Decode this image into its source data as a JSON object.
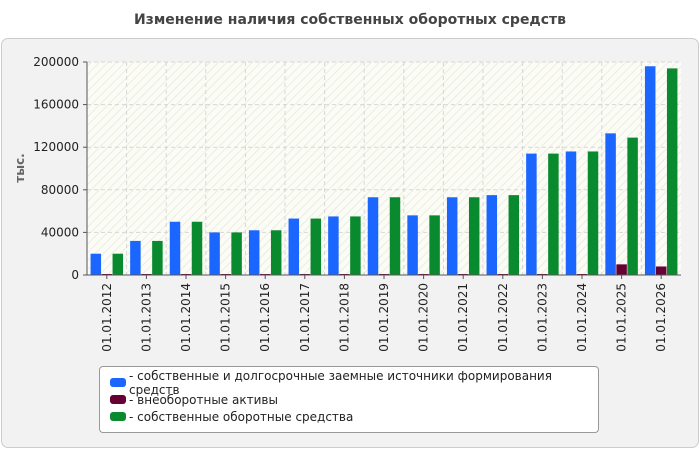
{
  "chart_data": {
    "type": "bar",
    "title": "Изменение наличия собственных оборотных средств",
    "ylabel": "тыс.",
    "xlabel": "",
    "categories": [
      "01.01.2012",
      "01.01.2013",
      "01.01.2014",
      "01.01.2015",
      "01.01.2016",
      "01.01.2017",
      "01.01.2018",
      "01.01.2019",
      "01.01.2020",
      "01.01.2021",
      "01.01.2022",
      "01.01.2023",
      "01.01.2024",
      "01.01.2025",
      "01.01.2026"
    ],
    "ylim": [
      0,
      200000
    ],
    "yticks": [
      "0",
      "40000",
      "80000",
      "120000",
      "160000",
      "200000"
    ],
    "grid": true,
    "legend_position": "bottom",
    "series": [
      {
        "name": "- собственные и долгосрочные заемные источники формирования средств",
        "color": "#1a66ff",
        "values": [
          20000,
          32000,
          50000,
          40000,
          42000,
          53000,
          55000,
          73000,
          56000,
          73000,
          75000,
          114000,
          116000,
          133000,
          196000
        ]
      },
      {
        "name": "- внеоборотные активы",
        "color": "#660033",
        "values": [
          500,
          500,
          500,
          500,
          500,
          500,
          500,
          500,
          500,
          500,
          500,
          500,
          500,
          10000,
          8000
        ]
      },
      {
        "name": "- собственные оборотные средства",
        "color": "#0a8a2e",
        "values": [
          20000,
          32000,
          50000,
          40000,
          42000,
          53000,
          55000,
          73000,
          56000,
          73000,
          75000,
          114000,
          116000,
          129000,
          194000
        ]
      }
    ]
  }
}
